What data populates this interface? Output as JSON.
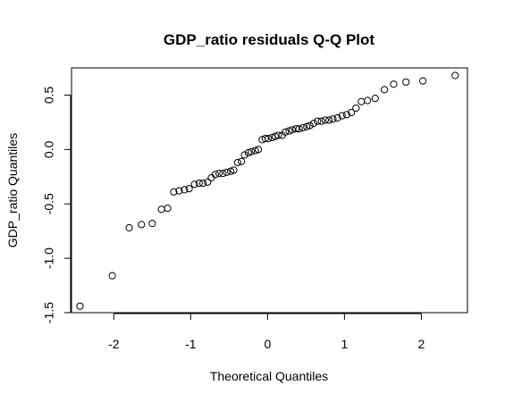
{
  "chart_data": {
    "type": "scatter",
    "title": "GDP_ratio residuals Q-Q Plot",
    "xlabel": "Theoretical Quantiles",
    "ylabel": "GDP_ratio Quantiles",
    "xlim": [
      -2.55,
      2.6
    ],
    "ylim": [
      -1.5,
      0.75
    ],
    "x_ticks": [
      -2,
      -1,
      0,
      1,
      2
    ],
    "x_tick_labels": [
      "-2",
      "-1",
      "0",
      "1",
      "2"
    ],
    "y_ticks": [
      -1.5,
      -1.0,
      -0.5,
      0.0,
      0.5
    ],
    "y_tick_labels": [
      "-1.5",
      "-1.0",
      "-0.5",
      "0.0",
      "0.5"
    ],
    "grid": false,
    "legend": "none",
    "marker": "open-circle",
    "points": [
      [
        -2.44,
        -1.44
      ],
      [
        -2.02,
        -1.16
      ],
      [
        -1.8,
        -0.72
      ],
      [
        -1.64,
        -0.69
      ],
      [
        -1.5,
        -0.68
      ],
      [
        -1.38,
        -0.55
      ],
      [
        -1.3,
        -0.54
      ],
      [
        -1.22,
        -0.39
      ],
      [
        -1.15,
        -0.38
      ],
      [
        -1.08,
        -0.37
      ],
      [
        -1.02,
        -0.36
      ],
      [
        -0.95,
        -0.32
      ],
      [
        -0.89,
        -0.31
      ],
      [
        -0.84,
        -0.31
      ],
      [
        -0.78,
        -0.3
      ],
      [
        -0.73,
        -0.26
      ],
      [
        -0.68,
        -0.23
      ],
      [
        -0.63,
        -0.22
      ],
      [
        -0.58,
        -0.22
      ],
      [
        -0.53,
        -0.21
      ],
      [
        -0.48,
        -0.2
      ],
      [
        -0.44,
        -0.19
      ],
      [
        -0.39,
        -0.12
      ],
      [
        -0.34,
        -0.11
      ],
      [
        -0.3,
        -0.05
      ],
      [
        -0.25,
        -0.03
      ],
      [
        -0.21,
        -0.02
      ],
      [
        -0.16,
        -0.01
      ],
      [
        -0.12,
        0.0
      ],
      [
        -0.07,
        0.09
      ],
      [
        -0.03,
        0.1
      ],
      [
        0.01,
        0.1
      ],
      [
        0.06,
        0.11
      ],
      [
        0.1,
        0.12
      ],
      [
        0.14,
        0.13
      ],
      [
        0.19,
        0.13
      ],
      [
        0.23,
        0.16
      ],
      [
        0.28,
        0.17
      ],
      [
        0.32,
        0.18
      ],
      [
        0.37,
        0.19
      ],
      [
        0.41,
        0.19
      ],
      [
        0.46,
        0.2
      ],
      [
        0.51,
        0.21
      ],
      [
        0.55,
        0.22
      ],
      [
        0.6,
        0.24
      ],
      [
        0.65,
        0.26
      ],
      [
        0.7,
        0.26
      ],
      [
        0.75,
        0.27
      ],
      [
        0.8,
        0.27
      ],
      [
        0.85,
        0.28
      ],
      [
        0.91,
        0.29
      ],
      [
        0.97,
        0.31
      ],
      [
        1.03,
        0.32
      ],
      [
        1.09,
        0.34
      ],
      [
        1.15,
        0.38
      ],
      [
        1.22,
        0.44
      ],
      [
        1.3,
        0.45
      ],
      [
        1.4,
        0.47
      ],
      [
        1.52,
        0.55
      ],
      [
        1.64,
        0.6
      ],
      [
        1.8,
        0.62
      ],
      [
        2.02,
        0.63
      ],
      [
        2.44,
        0.68
      ]
    ]
  }
}
